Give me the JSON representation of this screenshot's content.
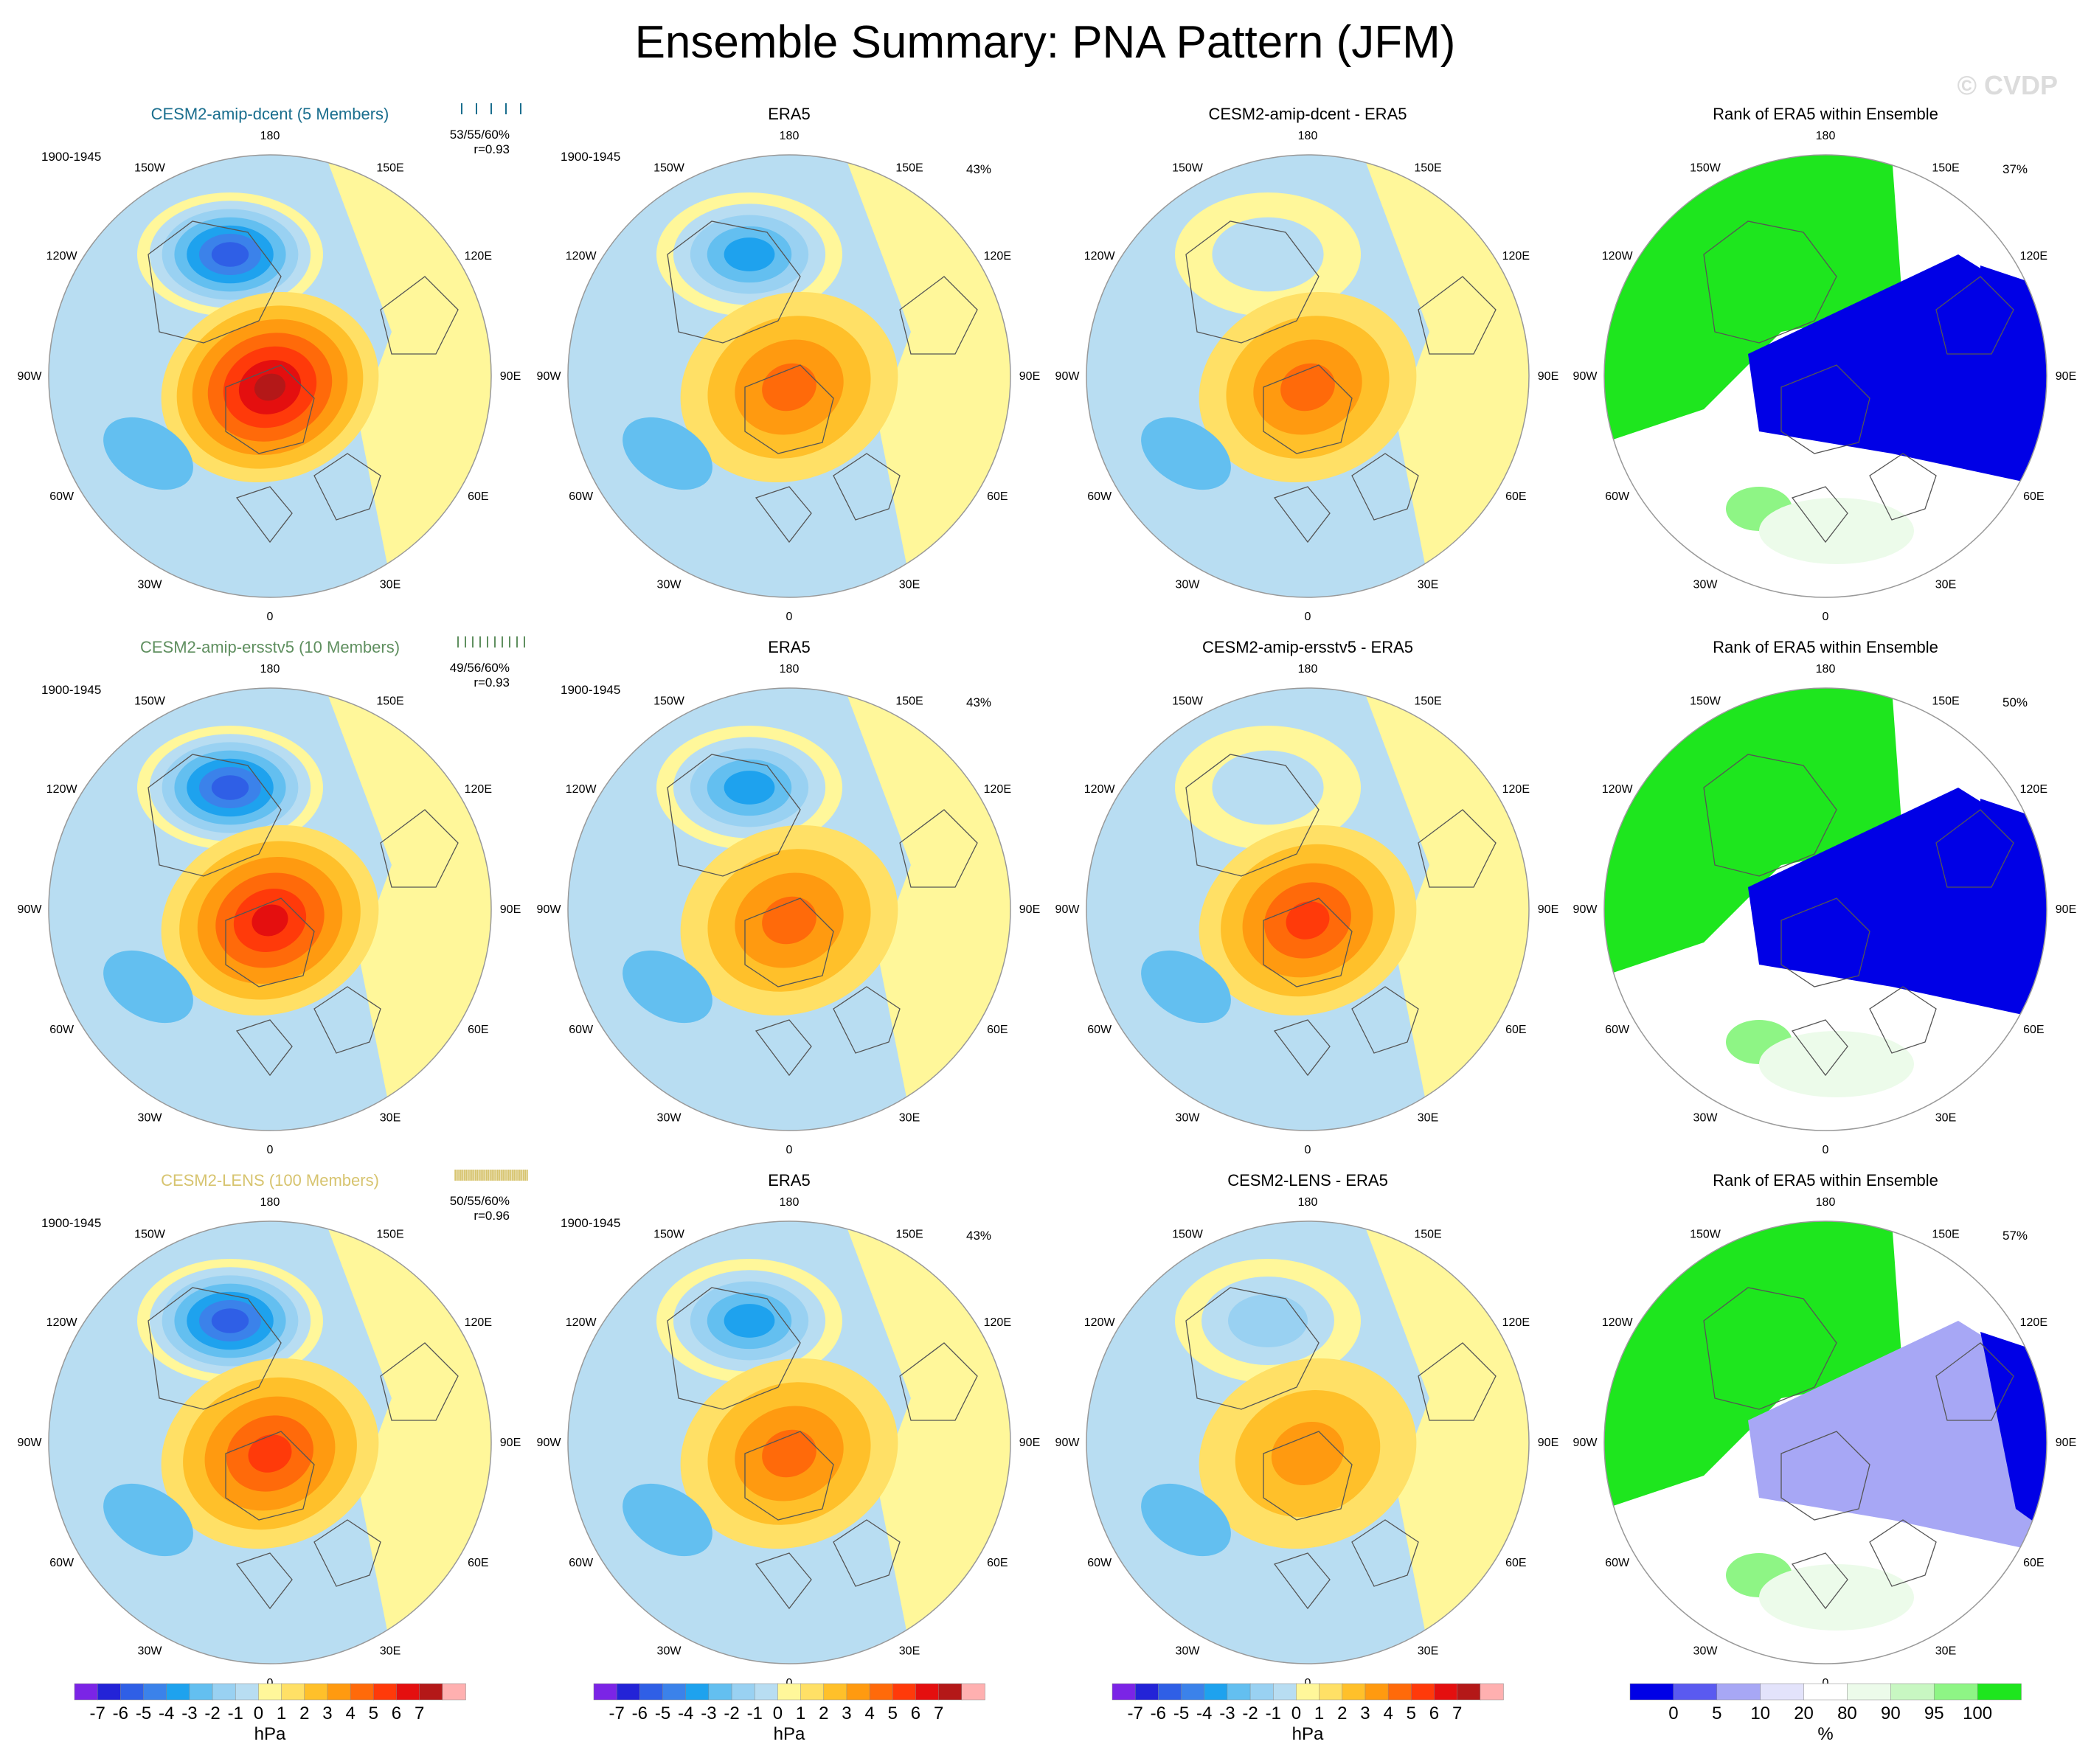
{
  "title": "Ensemble Summary: PNA Pattern (JFM)",
  "watermark": "© CVDP",
  "colors": {
    "ocean": "#b8ddf2",
    "pale_yellow": "#fff79a",
    "land_outline": "#555555",
    "ring": "#999999",
    "row_title": [
      "#1a6e8e",
      "#5f8f5f",
      "#d7c46f"
    ],
    "contour": [
      "#7b24e6",
      "#2323d7",
      "#2f5fe6",
      "#3b82ea",
      "#1ea2ee",
      "#63bff0",
      "#99d1f2",
      "#b8ddf2",
      "#fff79a",
      "#ffe066",
      "#ffc02a",
      "#ff9a10",
      "#ff6a0a",
      "#ff3a0a",
      "#e40f0f",
      "#b41818",
      "#ffb0b0"
    ],
    "rank": [
      "#0000e6",
      "#5a5af0",
      "#a7a7f5",
      "#e3e3fb",
      "#ffffff",
      "#ecfbea",
      "#c8f7c2",
      "#8ef585",
      "#1ee61e"
    ]
  },
  "chart_data": {
    "type": "contour-map-panels",
    "projection": "north-polar-stereographic",
    "lon_labels": [
      "180",
      "150E",
      "120E",
      "90E",
      "60E",
      "30E",
      "0",
      "30W",
      "60W",
      "90W",
      "120W",
      "150W"
    ],
    "rows": [
      {
        "model_title": "CESM2-amip-dcent (5 Members)",
        "period": "1900-1945",
        "pct_stats": "53/55/60%",
        "corr": "r=0.93",
        "n_ticks": 5,
        "panels": [
          {
            "title": "CESM2-amip-dcent (5 Members)",
            "kind": "ensemble",
            "low_hpa": -7,
            "high_hpa": 6,
            "pct": ""
          },
          {
            "title": "ERA5",
            "kind": "obs",
            "low_hpa": -5,
            "high_hpa": 3,
            "pct": "43%"
          },
          {
            "title": "CESM2-amip-dcent - ERA5",
            "kind": "diff",
            "low_hpa": -2,
            "high_hpa": 3,
            "pct": ""
          },
          {
            "title": "Rank of ERA5 within Ensemble",
            "kind": "rank",
            "pct": "37%"
          }
        ]
      },
      {
        "model_title": "CESM2-amip-ersstv5 (10 Members)",
        "period": "1900-1945",
        "pct_stats": "49/56/60%",
        "corr": "r=0.93",
        "n_ticks": 10,
        "panels": [
          {
            "title": "CESM2-amip-ersstv5 (10 Members)",
            "kind": "ensemble",
            "low_hpa": -7,
            "high_hpa": 5,
            "pct": ""
          },
          {
            "title": "ERA5",
            "kind": "obs",
            "low_hpa": -5,
            "high_hpa": 3,
            "pct": "43%"
          },
          {
            "title": "CESM2-amip-ersstv5 - ERA5",
            "kind": "diff",
            "low_hpa": -2,
            "high_hpa": 4,
            "pct": ""
          },
          {
            "title": "Rank of ERA5 within Ensemble",
            "kind": "rank",
            "pct": "50%"
          }
        ]
      },
      {
        "model_title": "CESM2-LENS (100 Members)",
        "period": "1900-1945",
        "pct_stats": "50/55/60%",
        "corr": "r=0.96",
        "n_ticks": 40,
        "panels": [
          {
            "title": "CESM2-LENS (100 Members)",
            "kind": "ensemble",
            "low_hpa": -7,
            "high_hpa": 4,
            "pct": ""
          },
          {
            "title": "ERA5",
            "kind": "obs",
            "low_hpa": -5,
            "high_hpa": 3,
            "pct": "43%"
          },
          {
            "title": "CESM2-LENS - ERA5",
            "kind": "diff",
            "low_hpa": -3,
            "high_hpa": 2,
            "pct": ""
          },
          {
            "title": "Rank of ERA5 within Ensemble",
            "kind": "rank",
            "pct": "57%"
          }
        ]
      }
    ],
    "colorbars": [
      {
        "labels": [
          "-7",
          "-6",
          "-5",
          "-4",
          "-3",
          "-2",
          "-1",
          "0",
          "1",
          "2",
          "3",
          "4",
          "5",
          "6",
          "7"
        ],
        "units": "hPa"
      },
      {
        "labels": [
          "-7",
          "-6",
          "-5",
          "-4",
          "-3",
          "-2",
          "-1",
          "0",
          "1",
          "2",
          "3",
          "4",
          "5",
          "6",
          "7"
        ],
        "units": "hPa"
      },
      {
        "labels": [
          "-7",
          "-6",
          "-5",
          "-4",
          "-3",
          "-2",
          "-1",
          "0",
          "1",
          "2",
          "3",
          "4",
          "5",
          "6",
          "7"
        ],
        "units": "hPa"
      },
      {
        "labels": [
          "0",
          "5",
          "10",
          "20",
          "80",
          "90",
          "95",
          "100"
        ],
        "units": "%"
      }
    ],
    "contour_levels": [
      -7,
      -6,
      -5,
      -4,
      -3,
      -2,
      -1,
      0,
      1,
      2,
      3,
      4,
      5,
      6,
      7
    ],
    "rank_levels": [
      0,
      5,
      10,
      20,
      80,
      90,
      95,
      100
    ]
  }
}
